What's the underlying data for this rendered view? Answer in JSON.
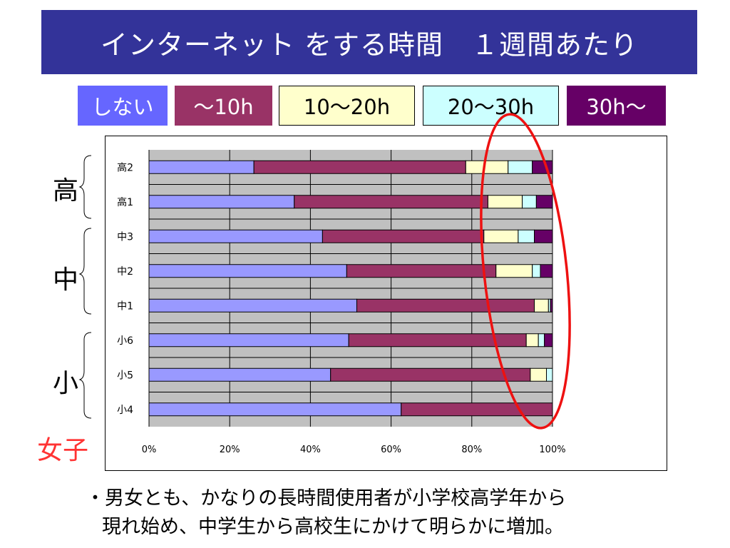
{
  "title": "インターネット をする時間　１週間あたり",
  "legend": [
    {
      "label": "しない",
      "bg": "#6666ff",
      "fg": "#ffffff",
      "border": "#6666ff"
    },
    {
      "label": "～10h",
      "bg": "#993366",
      "fg": "#ffffff",
      "border": "#993366"
    },
    {
      "label": "10～20h",
      "bg": "#ffffcc",
      "fg": "#000000",
      "border": "#000000"
    },
    {
      "label": "20～30h",
      "bg": "#ccffff",
      "fg": "#000000",
      "border": "#000000"
    },
    {
      "label": "30h～",
      "bg": "#660066",
      "fg": "#ffffff",
      "border": "#660066"
    }
  ],
  "groups": [
    {
      "label": "高"
    },
    {
      "label": "中"
    },
    {
      "label": "小"
    }
  ],
  "girls_label": "女子",
  "notes": [
    "・男女とも、かなりの長時間使用者が小学校高学年から",
    "現れ始め、中学生から高校生にかけて明らかに増加。"
  ],
  "colors": {
    "title_bg": "#333399",
    "plot_bg": "#c0c0c0",
    "highlight": "#ee1111",
    "girls_label": "#ff3333"
  },
  "chart_data": {
    "type": "bar",
    "orientation": "horizontal",
    "stacked": "percent",
    "categories": [
      "高2",
      "高1",
      "中3",
      "中2",
      "中1",
      "小6",
      "小5",
      "小4"
    ],
    "series": [
      {
        "name": "しない",
        "color": "#9999ff",
        "values": [
          26,
          36,
          43,
          49,
          51.5,
          49.5,
          45,
          62.5
        ]
      },
      {
        "name": "～10h",
        "color": "#993366",
        "values": [
          52.5,
          48,
          40,
          37,
          44,
          44,
          49.5,
          37.5
        ]
      },
      {
        "name": "10～20h",
        "color": "#ffffcc",
        "values": [
          10.5,
          8.5,
          8.5,
          9,
          3.5,
          3,
          4,
          0
        ]
      },
      {
        "name": "20～30h",
        "color": "#ccffff",
        "values": [
          6,
          3.5,
          4,
          2,
          0.5,
          1.5,
          1.5,
          0
        ]
      },
      {
        "name": "30h～",
        "color": "#660066",
        "values": [
          5,
          4,
          4.5,
          3,
          0.5,
          2,
          0,
          0
        ]
      }
    ],
    "xticks": [
      "0%",
      "20%",
      "40%",
      "60%",
      "80%",
      "100%"
    ],
    "xlim": [
      0,
      100
    ],
    "grid": true,
    "legend_position": "top"
  }
}
